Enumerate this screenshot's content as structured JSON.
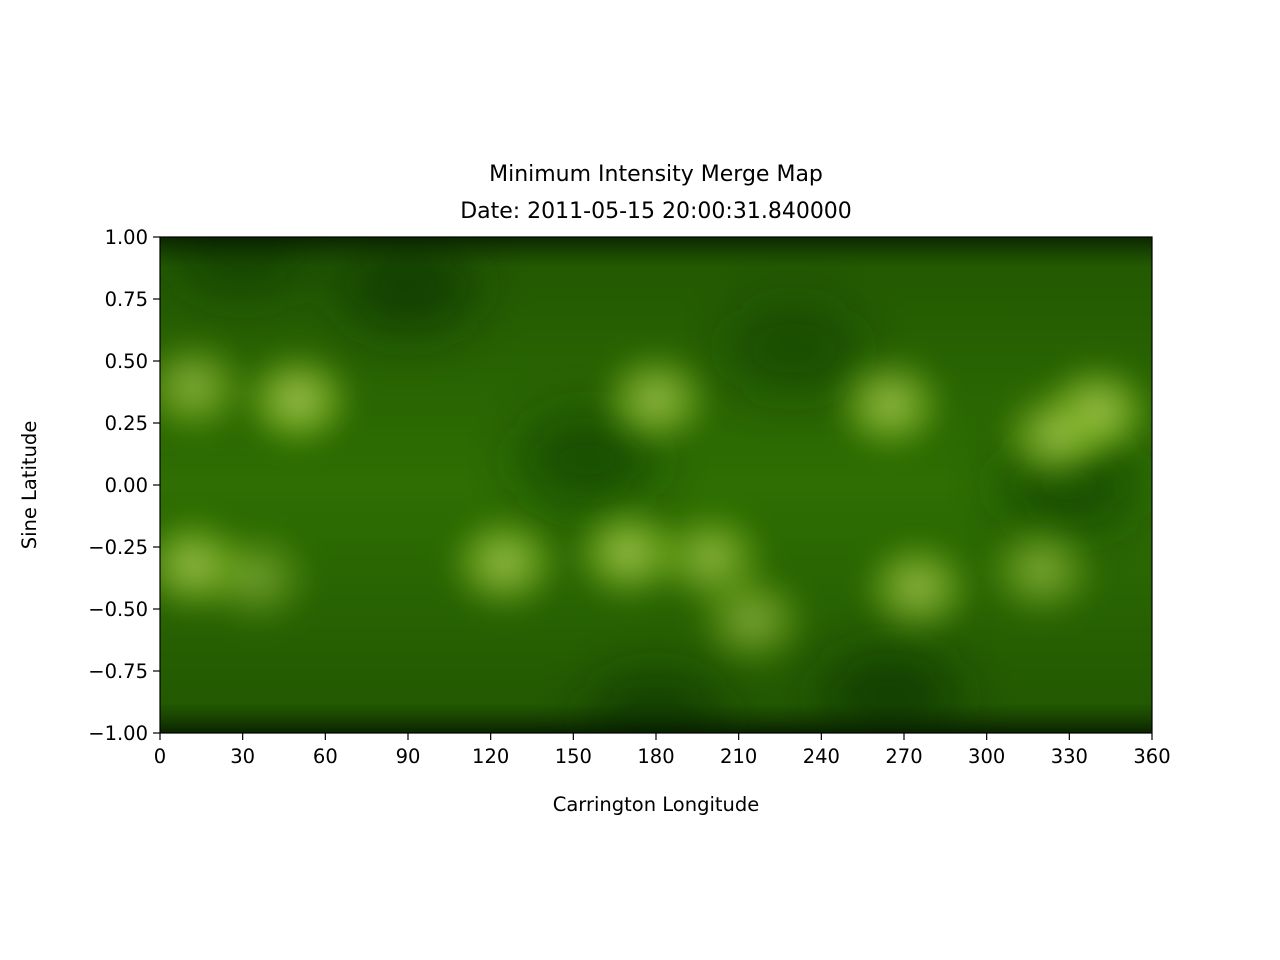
{
  "chart_data": {
    "type": "heatmap",
    "title": "Minimum Intensity Merge Map",
    "subtitle": "Date: 2011-05-15 20:00:31.840000",
    "xlabel": "Carrington Longitude",
    "ylabel": "Sine Latitude",
    "xlim": [
      0,
      360
    ],
    "ylim": [
      -1.0,
      1.0
    ],
    "x_ticks": [
      0,
      30,
      60,
      90,
      120,
      150,
      180,
      210,
      240,
      270,
      300,
      330,
      360
    ],
    "y_ticks": [
      1.0,
      0.75,
      0.5,
      0.25,
      0.0,
      -0.25,
      -0.5,
      -0.75,
      -1.0
    ],
    "y_tick_labels": [
      "1.00",
      "0.75",
      "0.50",
      "0.25",
      "0.00",
      "−0.25",
      "−0.50",
      "−0.75",
      "−1.00"
    ],
    "grid": false,
    "colormap": [
      "#0a2a00",
      "#2f6f00",
      "#4f9a08",
      "#8fc424",
      "#d9f07a"
    ],
    "bright_regions": [
      {
        "lon": 12,
        "lat": 0.4,
        "strength": 0.7
      },
      {
        "lon": 50,
        "lat": 0.35,
        "strength": 0.9
      },
      {
        "lon": 180,
        "lat": 0.35,
        "strength": 0.8
      },
      {
        "lon": 265,
        "lat": 0.33,
        "strength": 0.8
      },
      {
        "lon": 340,
        "lat": 0.3,
        "strength": 0.9
      },
      {
        "lon": 325,
        "lat": 0.2,
        "strength": 0.7
      },
      {
        "lon": 12,
        "lat": -0.33,
        "strength": 0.8
      },
      {
        "lon": 125,
        "lat": -0.32,
        "strength": 0.8
      },
      {
        "lon": 170,
        "lat": -0.28,
        "strength": 0.8
      },
      {
        "lon": 200,
        "lat": -0.3,
        "strength": 0.7
      },
      {
        "lon": 215,
        "lat": -0.55,
        "strength": 0.7
      },
      {
        "lon": 275,
        "lat": -0.42,
        "strength": 0.8
      },
      {
        "lon": 320,
        "lat": -0.35,
        "strength": 0.6
      },
      {
        "lon": 35,
        "lat": -0.38,
        "strength": 0.5
      }
    ],
    "dark_regions": [
      {
        "lon": 90,
        "lat": 0.8,
        "strength": 0.6
      },
      {
        "lon": 155,
        "lat": 0.1,
        "strength": 0.5
      },
      {
        "lon": 265,
        "lat": -0.85,
        "strength": 0.6
      },
      {
        "lon": 330,
        "lat": 0.0,
        "strength": 0.5
      },
      {
        "lon": 230,
        "lat": 0.55,
        "strength": 0.4
      },
      {
        "lon": 180,
        "lat": -0.95,
        "strength": 0.6
      },
      {
        "lon": 30,
        "lat": 0.95,
        "strength": 0.5
      }
    ]
  }
}
